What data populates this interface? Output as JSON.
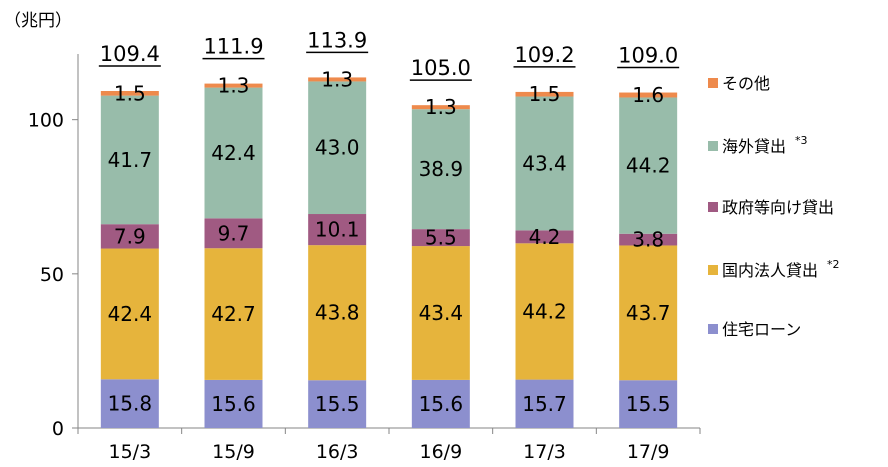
{
  "unit_label": "（兆円）",
  "chart_data": {
    "type": "bar",
    "stacked": true,
    "categories": [
      "15/3",
      "15/9",
      "16/3",
      "16/9",
      "17/3",
      "17/9"
    ],
    "ylim": [
      0,
      120
    ],
    "yticks": [
      0,
      50,
      100
    ],
    "legend_position": "right",
    "totals": [
      "109.4",
      "111.9",
      "113.9",
      "105.0",
      "109.2",
      "109.0"
    ],
    "series": [
      {
        "name": "住宅ローン",
        "color": "#8c8fce",
        "values": [
          15.8,
          15.6,
          15.5,
          15.6,
          15.7,
          15.5
        ],
        "labels": [
          "15.8",
          "15.6",
          "15.5",
          "15.6",
          "15.7",
          "15.5"
        ]
      },
      {
        "name": "国内法人貸出",
        "note": "*2",
        "color": "#e6b43c",
        "values": [
          42.4,
          42.7,
          43.8,
          43.4,
          44.2,
          43.7
        ],
        "labels": [
          "42.4",
          "42.7",
          "43.8",
          "43.4",
          "44.2",
          "43.7"
        ]
      },
      {
        "name": "政府等向け貸出",
        "color": "#a05a82",
        "values": [
          7.9,
          9.7,
          10.1,
          5.5,
          4.2,
          3.8
        ],
        "labels": [
          "7.9",
          "9.7",
          "10.1",
          "5.5",
          "4.2",
          "3.8"
        ]
      },
      {
        "name": "海外貸出",
        "note": "*3",
        "color": "#98bcaa",
        "values": [
          41.7,
          42.4,
          43.0,
          38.9,
          43.4,
          44.2
        ],
        "labels": [
          "41.7",
          "42.4",
          "43.0",
          "38.9",
          "43.4",
          "44.2"
        ]
      },
      {
        "name": "その他",
        "color": "#ee8a4c",
        "values": [
          1.5,
          1.3,
          1.3,
          1.3,
          1.5,
          1.6
        ],
        "labels": [
          "1.5",
          "1.3",
          "1.3",
          "1.3",
          "1.5",
          "1.6"
        ]
      }
    ]
  }
}
